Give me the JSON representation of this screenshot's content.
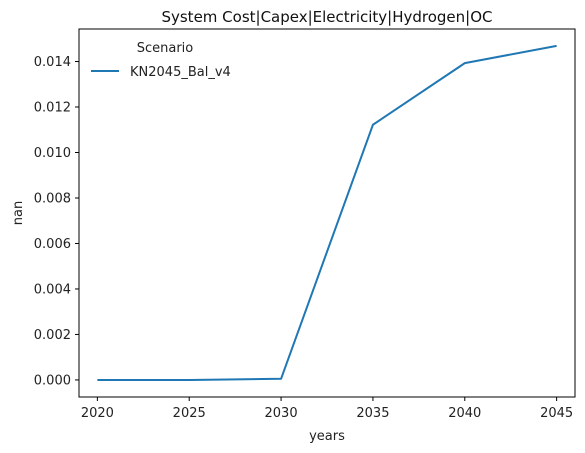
{
  "chart_data": {
    "type": "line",
    "title": "System Cost|Capex|Electricity|Hydrogen|OC",
    "xlabel": "years",
    "ylabel": "nan",
    "x": [
      2020,
      2025,
      2030,
      2035,
      2040,
      2045
    ],
    "xlim": [
      2019,
      2046
    ],
    "ylim": [
      -0.00075,
      0.01543
    ],
    "xticks": [
      2020,
      2025,
      2030,
      2035,
      2040,
      2045
    ],
    "yticks": [
      0.0,
      0.002,
      0.004,
      0.006,
      0.008,
      0.01,
      0.012,
      0.014
    ],
    "ytick_labels": [
      "0.000",
      "0.002",
      "0.004",
      "0.006",
      "0.008",
      "0.010",
      "0.012",
      "0.014"
    ],
    "grid": false,
    "legend": {
      "title": "Scenario",
      "placement": "top-left"
    },
    "series": [
      {
        "name": "KN2045_Bal_v4",
        "color": "#1f77b4",
        "values": [
          0.0,
          0.0,
          5e-05,
          0.01122,
          0.01393,
          0.01469
        ]
      }
    ]
  }
}
